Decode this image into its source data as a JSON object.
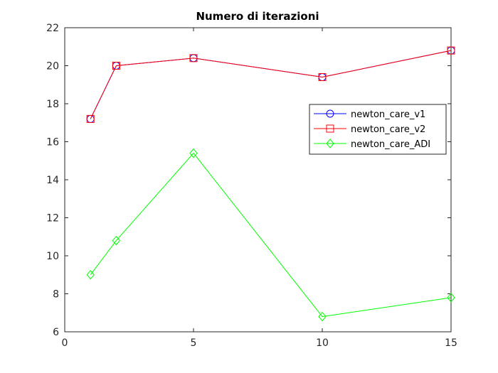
{
  "chart_data": {
    "type": "line",
    "title": "Numero di iterazioni",
    "xlabel": "",
    "ylabel": "",
    "xlim": [
      0,
      15
    ],
    "ylim": [
      6,
      22
    ],
    "xticks": [
      0,
      5,
      10,
      15
    ],
    "yticks": [
      6,
      8,
      10,
      12,
      14,
      16,
      18,
      20,
      22
    ],
    "grid": false,
    "legend_position": "right",
    "series": [
      {
        "name": "newton_care_v1",
        "color": "#0000ff",
        "marker": "circle",
        "x": [
          1,
          2,
          5,
          10,
          15
        ],
        "y": [
          17.2,
          20.0,
          20.4,
          19.4,
          20.8
        ]
      },
      {
        "name": "newton_care_v2",
        "color": "#ff0000",
        "marker": "square",
        "x": [
          1,
          2,
          5,
          10,
          15
        ],
        "y": [
          17.2,
          20.0,
          20.4,
          19.4,
          20.8
        ]
      },
      {
        "name": "newton_care_ADI",
        "color": "#00ff00",
        "marker": "diamond",
        "x": [
          1,
          2,
          5,
          10,
          15
        ],
        "y": [
          9.0,
          10.8,
          15.4,
          6.8,
          7.8
        ]
      }
    ]
  }
}
